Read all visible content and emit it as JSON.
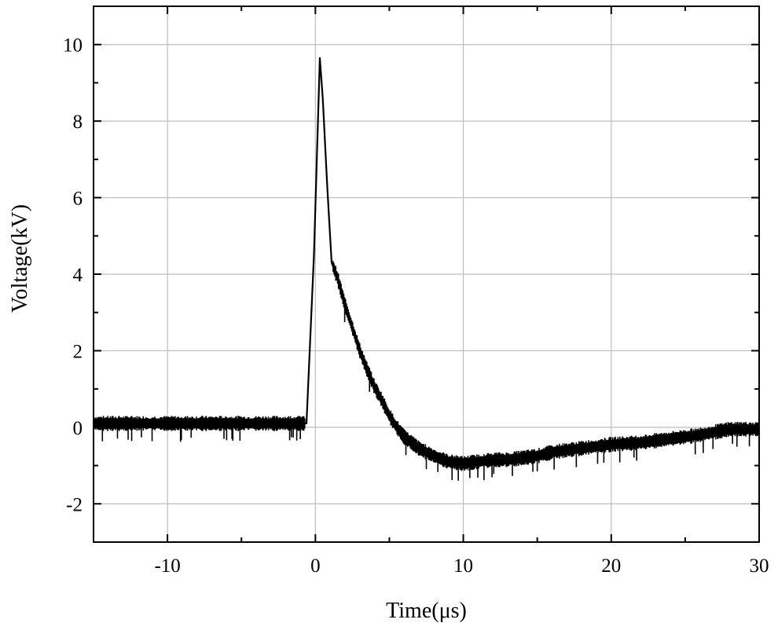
{
  "chart_data": {
    "type": "line",
    "title": "",
    "xlabel": "Time(μs)",
    "ylabel": "Voltage(kV)",
    "xlim": [
      -15,
      30
    ],
    "ylim": [
      -3,
      11
    ],
    "x_major_ticks": [
      -10,
      0,
      10,
      20,
      30
    ],
    "x_tick_labels": [
      "-10",
      "0",
      "10",
      "20",
      "30"
    ],
    "y_major_ticks": [
      -2,
      0,
      2,
      4,
      6,
      8,
      10
    ],
    "y_tick_labels": [
      "-2",
      "0",
      "2",
      "4",
      "6",
      "8",
      "10"
    ],
    "grid": true,
    "legend": "none",
    "line_color": "#000000",
    "series": [
      {
        "x": [
          -15,
          -12,
          -9,
          -6,
          -3,
          -1,
          -0.6,
          -0.1,
          0.3,
          0.5,
          0.8,
          1.1,
          1.5,
          2.0,
          2.5,
          3.0,
          3.5,
          4.0,
          4.5,
          5.0,
          5.5,
          6.0,
          7.0,
          8.0,
          9.0,
          10.0,
          11.0,
          12.0,
          13.0,
          14.0,
          15.0,
          16.0,
          18.0,
          20.0,
          22.0,
          24.0,
          26.0,
          28.0,
          30.0
        ],
        "y": [
          0.1,
          0.1,
          0.1,
          0.1,
          0.1,
          0.1,
          0.1,
          4.5,
          9.65,
          8.6,
          6.3,
          4.3,
          3.9,
          3.2,
          2.6,
          2.0,
          1.5,
          1.05,
          0.7,
          0.3,
          0.0,
          -0.25,
          -0.55,
          -0.75,
          -0.9,
          -0.95,
          -0.9,
          -0.85,
          -0.85,
          -0.8,
          -0.75,
          -0.65,
          -0.55,
          -0.45,
          -0.4,
          -0.3,
          -0.2,
          -0.05,
          -0.05
        ]
      }
    ]
  }
}
